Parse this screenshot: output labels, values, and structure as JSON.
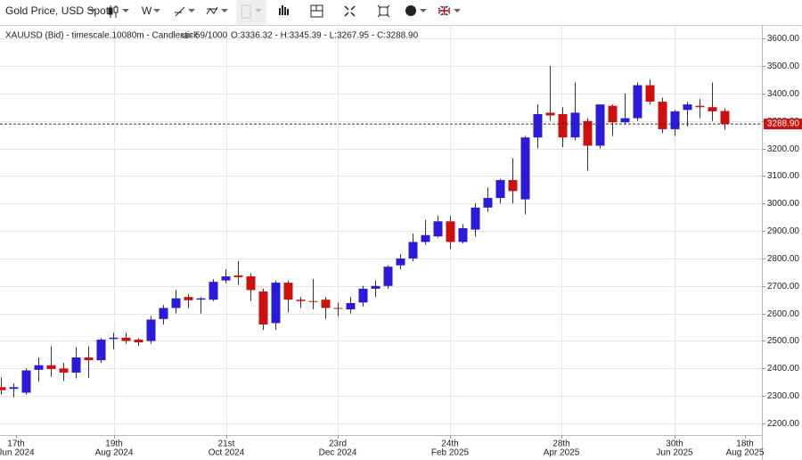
{
  "toolbar": {
    "instrument": "Gold Price, USD Spot",
    "interval": "W"
  },
  "chart_data": {
    "type": "candlestick",
    "info": "XAUUSD (Bid) - timescale.10080m - Candlestick",
    "count": "59/1000",
    "ohlc_text": "O:3336.32 - H:3345.39 - L:3267.95 - C:3288.90",
    "up_color": "#2b1bd6",
    "down_color": "#cc1111",
    "grid": true,
    "ylim": [
      2158,
      3649
    ],
    "yticks": [
      {
        "value": 2200,
        "label": "2200.00"
      },
      {
        "value": 2300,
        "label": "2300.00"
      },
      {
        "value": 2400,
        "label": "2400.00"
      },
      {
        "value": 2500,
        "label": "2500.00"
      },
      {
        "value": 2600,
        "label": "2600.00"
      },
      {
        "value": 2700,
        "label": "2700.00"
      },
      {
        "value": 2800,
        "label": "2800.00"
      },
      {
        "value": 2900,
        "label": "2900.00"
      },
      {
        "value": 3000,
        "label": "3000.00"
      },
      {
        "value": 3100,
        "label": "3100.00"
      },
      {
        "value": 3200,
        "label": "3200.00"
      },
      {
        "value": 3300,
        "label": "3300.00"
      },
      {
        "value": 3400,
        "label": "3400.00"
      },
      {
        "value": 3500,
        "label": "3500.00"
      },
      {
        "value": 3600,
        "label": "3600.00"
      }
    ],
    "last_price": {
      "value": 3288.9,
      "label": "3288.90"
    },
    "x_labels": [
      [
        "17th",
        "Jun 2024"
      ],
      [
        "19th",
        "Aug 2024"
      ],
      [
        "21st",
        "Oct 2024"
      ],
      [
        "23rd",
        "Dec 2024"
      ],
      [
        "24th",
        "Feb 2025"
      ],
      [
        "28th",
        "Apr 2025"
      ],
      [
        "30th",
        "Jun 2025"
      ],
      [
        "18th",
        "Aug 2025"
      ]
    ],
    "open": [
      2332,
      2326,
      2312,
      2395,
      2412,
      2400,
      2385,
      2440,
      2430,
      2507,
      2512,
      2505,
      2500,
      2580,
      2620,
      2660,
      2650,
      2650,
      2720,
      2738,
      2735,
      2680,
      2565,
      2712,
      2650,
      2645,
      2650,
      2620,
      2615,
      2640,
      2690,
      2700,
      2775,
      2800,
      2860,
      2880,
      2935,
      2860,
      2905,
      2985,
      3020,
      3085,
      3015,
      3240,
      3330,
      3325,
      3240,
      3300,
      3210,
      3355,
      3295,
      3310,
      3430,
      3370,
      3270,
      3340,
      3355,
      3350,
      3336.32
    ],
    "high": [
      2368,
      2345,
      2400,
      2440,
      2480,
      2420,
      2478,
      2480,
      2510,
      2530,
      2530,
      2510,
      2590,
      2630,
      2685,
      2670,
      2660,
      2725,
      2760,
      2790,
      2745,
      2690,
      2720,
      2720,
      2660,
      2725,
      2660,
      2640,
      2660,
      2700,
      2720,
      2775,
      2815,
      2890,
      2940,
      2955,
      2955,
      2925,
      3000,
      3057,
      3090,
      3165,
      3245,
      3360,
      3500,
      3350,
      3440,
      3310,
      3360,
      3360,
      3400,
      3440,
      3450,
      3385,
      3340,
      3370,
      3380,
      3440,
      3345.39
    ],
    "low": [
      2305,
      2295,
      2305,
      2352,
      2370,
      2355,
      2364,
      2365,
      2420,
      2470,
      2490,
      2482,
      2490,
      2560,
      2600,
      2620,
      2600,
      2645,
      2710,
      2705,
      2645,
      2540,
      2540,
      2605,
      2620,
      2615,
      2580,
      2590,
      2600,
      2625,
      2660,
      2690,
      2760,
      2790,
      2850,
      2875,
      2835,
      2855,
      2880,
      2970,
      3000,
      3000,
      2960,
      3200,
      3300,
      3205,
      3230,
      3120,
      3200,
      3245,
      3290,
      3300,
      3360,
      3255,
      3245,
      3280,
      3310,
      3300,
      3267.95
    ],
    "close": [
      2321,
      2332,
      2393,
      2412,
      2398,
      2385,
      2440,
      2430,
      2505,
      2512,
      2500,
      2495,
      2578,
      2620,
      2655,
      2648,
      2655,
      2715,
      2735,
      2732,
      2685,
      2560,
      2712,
      2650,
      2645,
      2643,
      2620,
      2618,
      2638,
      2690,
      2700,
      2770,
      2800,
      2860,
      2885,
      2935,
      2860,
      2910,
      2985,
      3020,
      3085,
      3045,
      3240,
      3325,
      3320,
      3240,
      3330,
      3210,
      3360,
      3295,
      3310,
      3430,
      3370,
      3270,
      3335,
      3360,
      3350,
      3335,
      3288.9
    ]
  }
}
